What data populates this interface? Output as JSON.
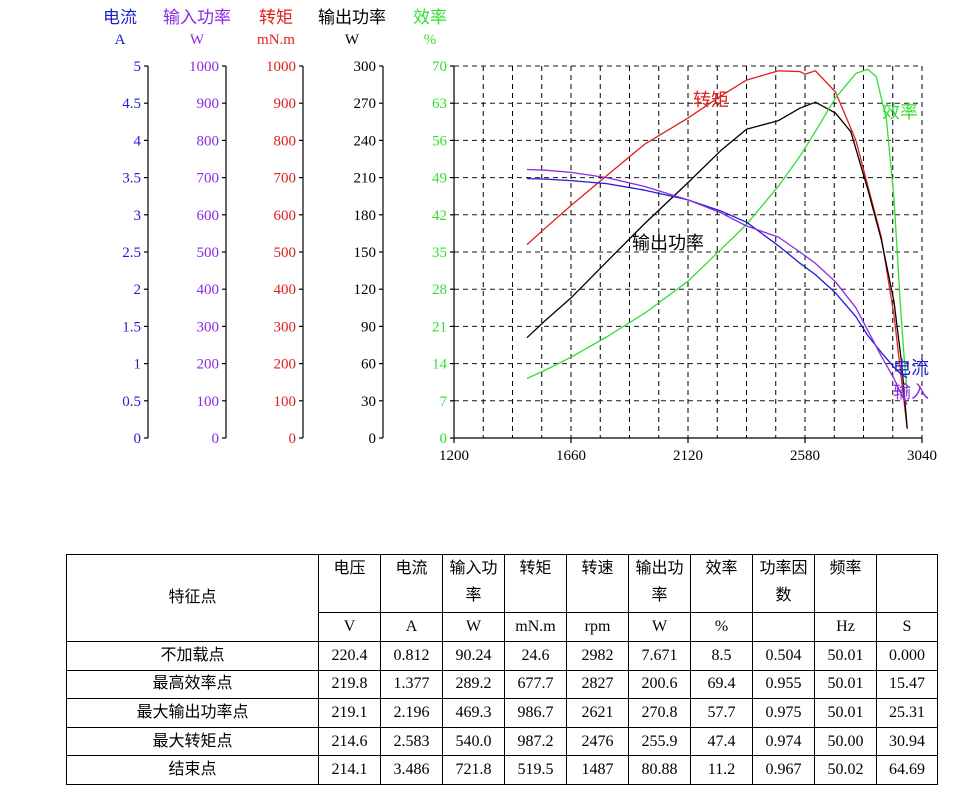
{
  "chart_data": {
    "type": "line",
    "x": {
      "ticks": [
        1200,
        1660,
        2120,
        2580,
        3040
      ],
      "range": [
        1200,
        3040
      ]
    },
    "axes": [
      {
        "key": "current",
        "name": "电流",
        "unit": "A",
        "color": "#1f1fd0",
        "range": [
          0,
          5
        ],
        "ticks": [
          "0",
          "0.5",
          "1",
          "1.5",
          "2",
          "2.5",
          "3",
          "3.5",
          "4",
          "4.5",
          "5"
        ]
      },
      {
        "key": "input_power",
        "name": "输入功率",
        "unit": "W",
        "color": "#8a2be2",
        "range": [
          0,
          1000
        ],
        "ticks": [
          "0",
          "100",
          "200",
          "300",
          "400",
          "500",
          "600",
          "700",
          "800",
          "900",
          "1000"
        ]
      },
      {
        "key": "torque",
        "name": "转矩",
        "unit": "mN.m",
        "color": "#e02020",
        "range": [
          0,
          1000
        ],
        "ticks": [
          "0",
          "100",
          "200",
          "300",
          "400",
          "500",
          "600",
          "700",
          "800",
          "900",
          "1000"
        ]
      },
      {
        "key": "output_power",
        "name": "输出功率",
        "unit": "W",
        "color": "#000000",
        "range": [
          0,
          300
        ],
        "ticks": [
          "0",
          "30",
          "60",
          "90",
          "120",
          "150",
          "180",
          "210",
          "240",
          "270",
          "300"
        ]
      },
      {
        "key": "efficiency",
        "name": "效率",
        "unit": "%",
        "color": "#33dd33",
        "range": [
          0,
          70
        ],
        "ticks": [
          "0",
          "7",
          "14",
          "21",
          "28",
          "35",
          "42",
          "49",
          "56",
          "63",
          "70"
        ]
      }
    ],
    "series": [
      {
        "name": "转矩",
        "axis": "torque",
        "color": "#e02020",
        "points": [
          [
            1487,
            520
          ],
          [
            1560,
            565
          ],
          [
            1660,
            625
          ],
          [
            1800,
            705
          ],
          [
            1950,
            790
          ],
          [
            2120,
            860
          ],
          [
            2250,
            920
          ],
          [
            2350,
            962
          ],
          [
            2476,
            987
          ],
          [
            2560,
            985
          ],
          [
            2580,
            978
          ],
          [
            2621,
            987
          ],
          [
            2700,
            930
          ],
          [
            2780,
            800
          ],
          [
            2827,
            678
          ],
          [
            2880,
            540
          ],
          [
            2930,
            330
          ],
          [
            2982,
            25
          ]
        ]
      },
      {
        "name": "输出功率",
        "axis": "output_power",
        "color": "#000000",
        "points": [
          [
            1487,
            80.9
          ],
          [
            1560,
            95
          ],
          [
            1660,
            113
          ],
          [
            1800,
            142
          ],
          [
            1950,
            173
          ],
          [
            2120,
            206
          ],
          [
            2250,
            232
          ],
          [
            2350,
            249
          ],
          [
            2476,
            256
          ],
          [
            2560,
            266
          ],
          [
            2621,
            270.8
          ],
          [
            2700,
            262
          ],
          [
            2760,
            247
          ],
          [
            2827,
            200.6
          ],
          [
            2880,
            160
          ],
          [
            2930,
            110
          ],
          [
            2960,
            60
          ],
          [
            2982,
            7.7
          ]
        ]
      },
      {
        "name": "效率",
        "axis": "efficiency",
        "color": "#33dd33",
        "points": [
          [
            1487,
            11.2
          ],
          [
            1560,
            12.8
          ],
          [
            1660,
            15.2
          ],
          [
            1800,
            19
          ],
          [
            1950,
            23.5
          ],
          [
            2120,
            29.5
          ],
          [
            2250,
            35.5
          ],
          [
            2350,
            40.2
          ],
          [
            2476,
            47.4
          ],
          [
            2560,
            53
          ],
          [
            2621,
            57.7
          ],
          [
            2700,
            64
          ],
          [
            2780,
            68.6
          ],
          [
            2827,
            69.4
          ],
          [
            2860,
            68
          ],
          [
            2900,
            60
          ],
          [
            2930,
            45
          ],
          [
            2955,
            25
          ],
          [
            2970,
            15
          ],
          [
            2982,
            8.5
          ]
        ]
      },
      {
        "name": "电流",
        "axis": "current",
        "color": "#1f1fd0",
        "points": [
          [
            1487,
            3.486
          ],
          [
            1560,
            3.48
          ],
          [
            1660,
            3.46
          ],
          [
            1800,
            3.42
          ],
          [
            1950,
            3.33
          ],
          [
            2120,
            3.2
          ],
          [
            2250,
            3.05
          ],
          [
            2350,
            2.9
          ],
          [
            2476,
            2.583
          ],
          [
            2560,
            2.35
          ],
          [
            2621,
            2.196
          ],
          [
            2700,
            1.95
          ],
          [
            2780,
            1.63
          ],
          [
            2827,
            1.377
          ],
          [
            2880,
            1.15
          ],
          [
            2930,
            0.95
          ],
          [
            2960,
            0.85
          ],
          [
            2982,
            0.812
          ]
        ]
      },
      {
        "name": "输入功率",
        "axis": "input_power",
        "color": "#8a2be2",
        "points": [
          [
            1487,
            721.8
          ],
          [
            1560,
            720
          ],
          [
            1660,
            714
          ],
          [
            1800,
            700
          ],
          [
            1950,
            676
          ],
          [
            2120,
            640
          ],
          [
            2250,
            605
          ],
          [
            2350,
            570
          ],
          [
            2476,
            540
          ],
          [
            2560,
            500
          ],
          [
            2621,
            469.3
          ],
          [
            2700,
            420
          ],
          [
            2780,
            350
          ],
          [
            2827,
            289.2
          ],
          [
            2880,
            220
          ],
          [
            2930,
            160
          ],
          [
            2960,
            115
          ],
          [
            2982,
            90.24
          ]
        ]
      }
    ],
    "labels": {
      "torque": "转矩",
      "output_power": "输出功率",
      "efficiency": "效率",
      "current": "电流",
      "input_power": "输入"
    },
    "grid": true
  },
  "table": {
    "header_label": "特征点",
    "columns": [
      {
        "name": "电压",
        "unit": "V"
      },
      {
        "name": "电流",
        "unit": "A"
      },
      {
        "name": "输入功率",
        "unit": "W"
      },
      {
        "name": "转矩",
        "unit": "mN.m"
      },
      {
        "name": "转速",
        "unit": "rpm"
      },
      {
        "name": "输出功率",
        "unit": "W"
      },
      {
        "name": "效率",
        "unit": "%"
      },
      {
        "name": "功率因数",
        "unit": ""
      },
      {
        "name": "频率",
        "unit": "Hz"
      },
      {
        "name": "",
        "unit": "S"
      }
    ],
    "rows": [
      {
        "label": "不加载点",
        "values": [
          "220.4",
          "0.812",
          "90.24",
          "24.6",
          "2982",
          "7.671",
          "8.5",
          "0.504",
          "50.01",
          "0.000"
        ]
      },
      {
        "label": "最高效率点",
        "values": [
          "219.8",
          "1.377",
          "289.2",
          "677.7",
          "2827",
          "200.6",
          "69.4",
          "0.955",
          "50.01",
          "15.47"
        ]
      },
      {
        "label": "最大输出功率点",
        "values": [
          "219.1",
          "2.196",
          "469.3",
          "986.7",
          "2621",
          "270.8",
          "57.7",
          "0.975",
          "50.01",
          "25.31"
        ]
      },
      {
        "label": "最大转矩点",
        "values": [
          "214.6",
          "2.583",
          "540.0",
          "987.2",
          "2476",
          "255.9",
          "47.4",
          "0.974",
          "50.00",
          "30.94"
        ]
      },
      {
        "label": "结束点",
        "values": [
          "214.1",
          "3.486",
          "721.8",
          "519.5",
          "1487",
          "80.88",
          "11.2",
          "0.967",
          "50.02",
          "64.69"
        ]
      }
    ]
  }
}
